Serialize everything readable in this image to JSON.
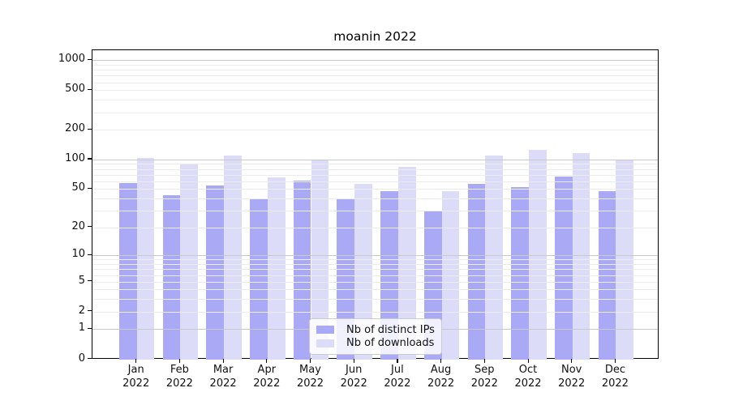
{
  "chart_data": {
    "type": "bar",
    "title": "moanin 2022",
    "categories": [
      "Jan",
      "Feb",
      "Mar",
      "Apr",
      "May",
      "Jun",
      "Jul",
      "Aug",
      "Sep",
      "Oct",
      "Nov",
      "Dec"
    ],
    "year": "2022",
    "series": [
      {
        "name": "Nb of distinct IPs",
        "color": "#a9a9f6",
        "values": [
          58,
          43,
          54,
          40,
          61,
          40,
          48,
          30,
          56,
          52,
          67,
          48
        ]
      },
      {
        "name": "Nb of downloads",
        "color": "#dcdcf8",
        "values": [
          103,
          91,
          110,
          66,
          100,
          56,
          84,
          48,
          109,
          126,
          116,
          97
        ]
      }
    ],
    "yticks": [
      0,
      1,
      2,
      5,
      10,
      20,
      50,
      100,
      200,
      500,
      1000
    ],
    "ylim": [
      0,
      1266
    ],
    "scale": "log10(value+1)",
    "grid": true,
    "grid_major_color": "#c9c9c9",
    "grid_minor_color": "#ececec",
    "legend_position": "lower center",
    "xlabel": "",
    "ylabel": ""
  }
}
